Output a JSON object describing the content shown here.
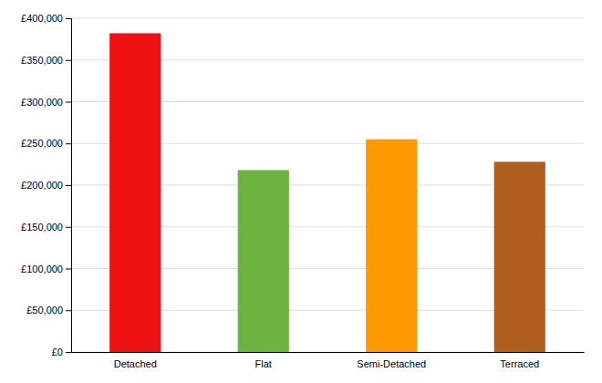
{
  "chart_data": {
    "type": "bar",
    "categories": [
      "Detached",
      "Flat",
      "Semi-Detached",
      "Terraced"
    ],
    "values": [
      382000,
      218000,
      255000,
      228000
    ],
    "colors": [
      "#ee1111",
      "#6db33f",
      "#ff9900",
      "#b05e1e"
    ],
    "ylim": [
      0,
      400000
    ],
    "yticks": [
      {
        "value": 0,
        "label": "£0"
      },
      {
        "value": 50000,
        "label": "£50,000"
      },
      {
        "value": 100000,
        "label": "£100,000"
      },
      {
        "value": 150000,
        "label": "£150,000"
      },
      {
        "value": 200000,
        "label": "£200,000"
      },
      {
        "value": 250000,
        "label": "£250,000"
      },
      {
        "value": 300000,
        "label": "£300,000"
      },
      {
        "value": 350000,
        "label": "£350,000"
      },
      {
        "value": 400000,
        "label": "£400,000"
      }
    ],
    "grid": true
  }
}
